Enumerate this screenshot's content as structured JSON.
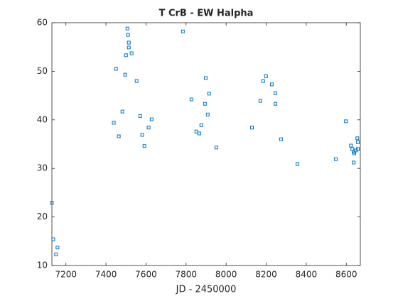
{
  "chart_data": {
    "type": "scatter",
    "title": "T CrB - EW Halpha",
    "xlabel": "JD - 2450000",
    "x": [
      7130,
      7137,
      7151,
      7158,
      7439,
      7450,
      7464,
      7482,
      7496,
      7500,
      7507,
      7510,
      7514,
      7514,
      7528,
      7553,
      7571,
      7581,
      7592,
      7613,
      7628,
      7784,
      7827,
      7851,
      7866,
      7876,
      7894,
      7898,
      7908,
      7915,
      7951,
      8129,
      8171,
      8185,
      8199,
      8228,
      8246,
      8246,
      8274,
      8356,
      8548,
      8598,
      8623,
      8630,
      8637,
      8640,
      8637,
      8648,
      8655,
      8658,
      8658
    ],
    "values": [
      22.9,
      15.4,
      12.3,
      13.7,
      39.4,
      50.5,
      36.6,
      41.7,
      49.3,
      53.3,
      58.8,
      57.5,
      55.9,
      54.9,
      53.7,
      48.0,
      40.8,
      36.9,
      34.6,
      38.4,
      40.1,
      58.2,
      44.2,
      37.6,
      37.2,
      38.9,
      43.3,
      48.6,
      41.1,
      45.4,
      34.3,
      38.4,
      43.9,
      48.0,
      49.0,
      47.3,
      45.5,
      43.3,
      36.0,
      30.9,
      31.9,
      39.7,
      34.7,
      34.0,
      33.4,
      33.1,
      31.2,
      33.7,
      36.2,
      34.0,
      35.4
    ],
    "color": "#0072bd",
    "xlim": [
      7130,
      8670
    ],
    "xticks": [
      7200,
      7400,
      7600,
      7800,
      8000,
      8200,
      8400,
      8600
    ],
    "ylim": [
      10,
      60
    ],
    "yticks": [
      10,
      20,
      30,
      40,
      50,
      60
    ]
  }
}
